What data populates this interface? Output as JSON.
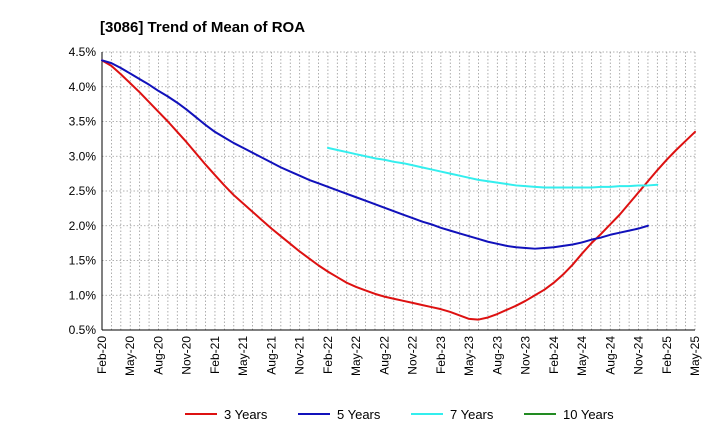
{
  "chart_data": {
    "type": "line",
    "title": "[3086]  Trend of Mean of ROA",
    "xlabel": "",
    "ylabel": "",
    "ylim": [
      0.5,
      4.5
    ],
    "yticks": [
      "0.5%",
      "1.0%",
      "1.5%",
      "2.0%",
      "2.5%",
      "3.0%",
      "3.5%",
      "4.0%",
      "4.5%"
    ],
    "ytick_values": [
      0.5,
      1.0,
      1.5,
      2.0,
      2.5,
      3.0,
      3.5,
      4.0,
      4.5
    ],
    "xticks": [
      "Feb-20",
      "May-20",
      "Aug-20",
      "Nov-20",
      "Feb-21",
      "May-21",
      "Aug-21",
      "Nov-21",
      "Feb-22",
      "May-22",
      "Aug-22",
      "Nov-22",
      "Feb-23",
      "May-23",
      "Aug-23",
      "Nov-23",
      "Feb-24",
      "May-24",
      "Aug-24",
      "Nov-24",
      "Feb-25",
      "May-25"
    ],
    "x_count_months": 64,
    "grid": true,
    "legend_position": "bottom",
    "series": [
      {
        "name": "3 Years",
        "color": "#dd1111",
        "start_index": 0,
        "values": [
          4.38,
          4.3,
          4.18,
          4.05,
          3.92,
          3.78,
          3.64,
          3.5,
          3.35,
          3.2,
          3.04,
          2.88,
          2.73,
          2.58,
          2.44,
          2.32,
          2.2,
          2.08,
          1.96,
          1.85,
          1.74,
          1.63,
          1.53,
          1.43,
          1.34,
          1.26,
          1.18,
          1.12,
          1.07,
          1.02,
          0.98,
          0.95,
          0.92,
          0.89,
          0.86,
          0.83,
          0.8,
          0.76,
          0.71,
          0.66,
          0.65,
          0.68,
          0.73,
          0.79,
          0.85,
          0.92,
          1.0,
          1.08,
          1.18,
          1.3,
          1.44,
          1.6,
          1.75,
          1.88,
          2.02,
          2.16,
          2.32,
          2.48,
          2.64,
          2.8,
          2.95,
          3.09,
          3.22,
          3.35
        ]
      },
      {
        "name": "5 Years",
        "color": "#1111bb",
        "start_index": 0,
        "values": [
          4.38,
          4.34,
          4.27,
          4.19,
          4.11,
          4.03,
          3.94,
          3.86,
          3.77,
          3.67,
          3.56,
          3.45,
          3.35,
          3.27,
          3.19,
          3.12,
          3.05,
          2.98,
          2.91,
          2.84,
          2.78,
          2.72,
          2.66,
          2.61,
          2.56,
          2.51,
          2.46,
          2.41,
          2.36,
          2.31,
          2.26,
          2.21,
          2.16,
          2.11,
          2.06,
          2.02,
          1.97,
          1.93,
          1.89,
          1.85,
          1.81,
          1.77,
          1.74,
          1.71,
          1.69,
          1.68,
          1.67,
          1.68,
          1.69,
          1.71,
          1.73,
          1.76,
          1.8,
          1.83,
          1.87,
          1.9,
          1.93,
          1.96,
          2.0
        ]
      },
      {
        "name": "7 Years",
        "color": "#33eeee",
        "start_index": 24,
        "values": [
          3.12,
          3.09,
          3.06,
          3.03,
          3.0,
          2.97,
          2.95,
          2.92,
          2.9,
          2.87,
          2.84,
          2.81,
          2.78,
          2.75,
          2.72,
          2.69,
          2.66,
          2.64,
          2.62,
          2.6,
          2.58,
          2.57,
          2.56,
          2.55,
          2.55,
          2.55,
          2.55,
          2.55,
          2.55,
          2.56,
          2.56,
          2.57,
          2.57,
          2.58,
          2.58,
          2.59
        ]
      },
      {
        "name": "10 Years",
        "color": "#228b22",
        "start_index": 0,
        "values": []
      }
    ]
  }
}
